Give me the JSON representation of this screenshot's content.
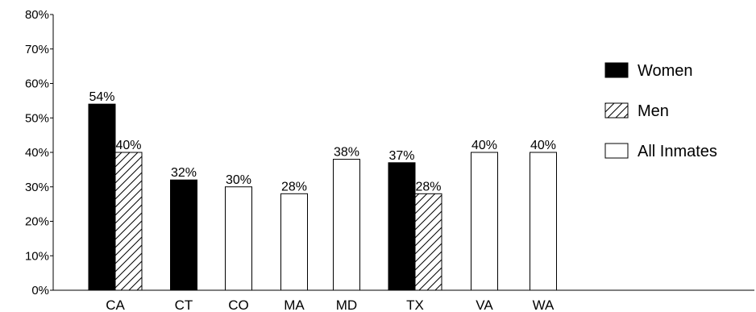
{
  "chart_data": {
    "type": "bar",
    "title": "",
    "xlabel": "",
    "ylabel": "",
    "ylim": [
      0,
      80
    ],
    "yticks": [
      "0%",
      "10%",
      "20%",
      "30%",
      "40%",
      "50%",
      "60%",
      "70%",
      "80%"
    ],
    "grid": false,
    "legend_position": "right",
    "series": [
      {
        "name": "Women",
        "style": "solid-black"
      },
      {
        "name": "Men",
        "style": "hatched"
      },
      {
        "name": "All Inmates",
        "style": "white"
      }
    ],
    "groups": [
      {
        "category": "CA",
        "bars": [
          {
            "series": "Women",
            "value": 54,
            "label": "54%"
          },
          {
            "series": "Men",
            "value": 40,
            "label": "40%"
          }
        ]
      },
      {
        "category": "CT",
        "bars": [
          {
            "series": "Women",
            "value": 32,
            "label": "32%"
          }
        ]
      },
      {
        "category": "CO",
        "bars": [
          {
            "series": "All Inmates",
            "value": 30,
            "label": "30%"
          }
        ]
      },
      {
        "category": "MA",
        "bars": [
          {
            "series": "All Inmates",
            "value": 28,
            "label": "28%"
          }
        ]
      },
      {
        "category": "MD",
        "bars": [
          {
            "series": "All Inmates",
            "value": 38,
            "label": "38%"
          }
        ]
      },
      {
        "category": "TX",
        "bars": [
          {
            "series": "Women",
            "value": 37,
            "label": "37%"
          },
          {
            "series": "Men",
            "value": 28,
            "label": "28%"
          }
        ]
      },
      {
        "category": "VA",
        "bars": [
          {
            "series": "All Inmates",
            "value": 40,
            "label": "40%"
          }
        ]
      },
      {
        "category": "WA",
        "bars": [
          {
            "series": "All Inmates",
            "value": 40,
            "label": "40%"
          }
        ]
      }
    ]
  },
  "colors": {
    "women": "#000000",
    "men": "#ffffff",
    "all_inmates": "#ffffff",
    "stroke": "#000000"
  }
}
